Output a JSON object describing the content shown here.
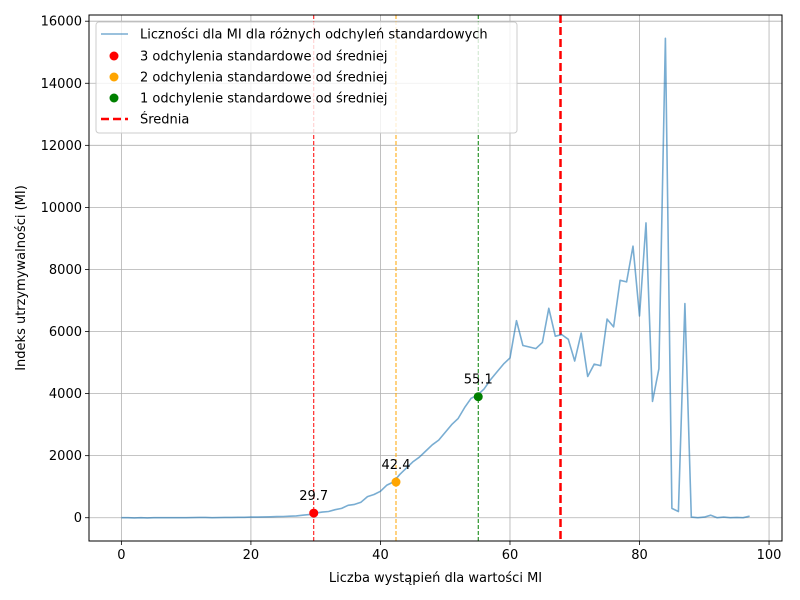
{
  "chart_data": {
    "type": "line",
    "xlabel": "Liczba wystąpień dla wartości MI",
    "ylabel": "Indeks utrzymywalności (MI)",
    "xlim": [
      -5,
      102
    ],
    "ylim": [
      -750,
      16200
    ],
    "xticks": [
      0,
      20,
      40,
      60,
      80,
      100
    ],
    "yticks": [
      0,
      2000,
      4000,
      6000,
      8000,
      10000,
      12000,
      14000,
      16000
    ],
    "grid": true,
    "legend_placement": "top-left",
    "series": [
      {
        "name": "Liczności dla MI dla różnych odchyleń standardowych",
        "color": "#1f77b4",
        "x": [
          0,
          1,
          2,
          3,
          4,
          5,
          6,
          7,
          8,
          9,
          10,
          11,
          12,
          13,
          14,
          15,
          16,
          17,
          18,
          19,
          20,
          21,
          22,
          23,
          24,
          25,
          26,
          27,
          28,
          29,
          30,
          31,
          32,
          33,
          34,
          35,
          36,
          37,
          38,
          39,
          40,
          41,
          42,
          43,
          44,
          45,
          46,
          47,
          48,
          49,
          50,
          51,
          52,
          53,
          54,
          55,
          56,
          57,
          58,
          59,
          60,
          61,
          62,
          63,
          64,
          65,
          66,
          67,
          68,
          69,
          70,
          71,
          72,
          73,
          74,
          75,
          76,
          77,
          78,
          79,
          80,
          81,
          82,
          83,
          84,
          85,
          86,
          87,
          88,
          89,
          90,
          91,
          92,
          93,
          94,
          95,
          96,
          97
        ],
        "y": [
          0,
          0,
          -5,
          0,
          -5,
          0,
          0,
          0,
          0,
          0,
          0,
          5,
          10,
          10,
          0,
          5,
          10,
          10,
          15,
          15,
          20,
          20,
          25,
          30,
          35,
          40,
          50,
          60,
          80,
          100,
          150,
          180,
          200,
          260,
          300,
          400,
          430,
          500,
          680,
          750,
          850,
          1050,
          1150,
          1400,
          1600,
          1800,
          1950,
          2150,
          2350,
          2500,
          2750,
          3000,
          3200,
          3550,
          3850,
          3950,
          4150,
          4450,
          4700,
          4950,
          5150,
          6350,
          5550,
          5500,
          5450,
          5650,
          6750,
          5850,
          5900,
          5750,
          5050,
          5950,
          4550,
          4950,
          4900,
          6400,
          6150,
          7650,
          7600,
          8750,
          6500,
          9500,
          3750,
          4800,
          15450,
          300,
          200,
          6900,
          20,
          0,
          20,
          80,
          0,
          20,
          0,
          10,
          0,
          50
        ]
      }
    ],
    "markers": [
      {
        "name": "3 odchylenia standardowe od średniej",
        "x": 29.7,
        "y": 150,
        "label": "29.7",
        "color": "#ff0000"
      },
      {
        "name": "2 odchylenia standardowe od średniej",
        "x": 42.4,
        "y": 1150,
        "label": "42.4",
        "color": "#ffa500"
      },
      {
        "name": "1 odchylenie standardowe od średniej",
        "x": 55.1,
        "y": 3900,
        "label": "55.1",
        "color": "#008000"
      }
    ],
    "mean": {
      "name": "Średnia",
      "x": 67.8,
      "color": "#ff0000"
    }
  }
}
